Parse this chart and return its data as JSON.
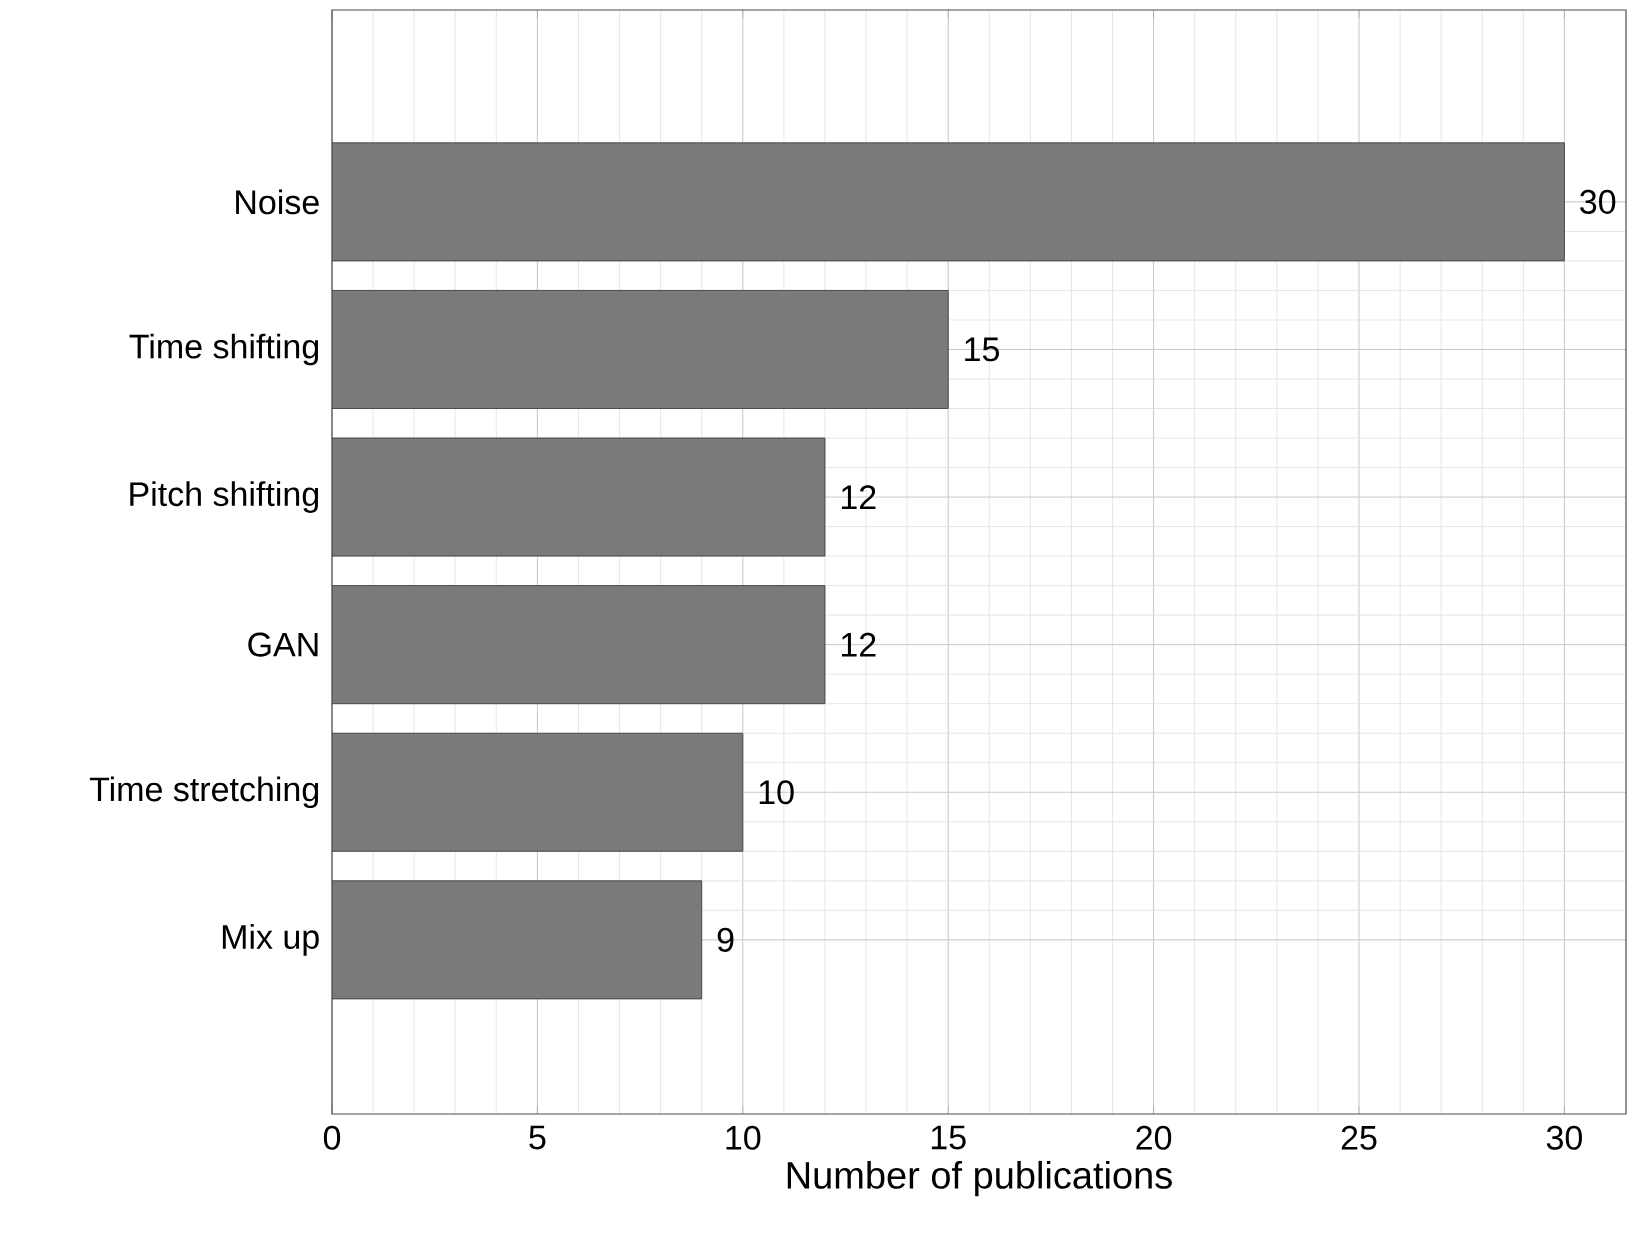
{
  "chart_data": {
    "type": "bar",
    "orientation": "horizontal",
    "xlabel": "Number of publications",
    "categories": [
      "Noise",
      "Time shifting",
      "Pitch shifting",
      "GAN",
      "Time stretching",
      "Mix up"
    ],
    "values": [
      30,
      15,
      12,
      12,
      10,
      9
    ],
    "color": "#7a7a7a",
    "xlim": [
      0,
      31.5
    ],
    "xticks": [
      0,
      5,
      10,
      15,
      20,
      25,
      30
    ],
    "grid": true,
    "data_labels": true
  }
}
